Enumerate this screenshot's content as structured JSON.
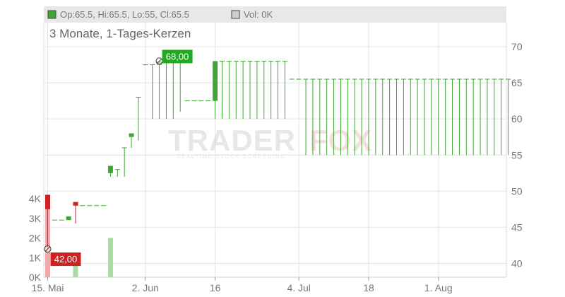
{
  "header": {
    "ohlc_text": "Op:65.5, Hi:65.5, Lo:55, Cl:65.5",
    "vol_text": "Vol: 0K"
  },
  "chart_data": {
    "type": "candlestick",
    "title": "3 Monate, 1-Tages-Kerzen",
    "price_axis": {
      "range": [
        38,
        75
      ],
      "ticks": [
        40,
        45,
        50,
        55,
        60,
        65,
        70
      ]
    },
    "volume_axis": {
      "range": [
        0,
        4000
      ],
      "ticks": [
        "0K",
        "1K",
        "2K",
        "3K",
        "4K"
      ]
    },
    "x_axis": {
      "ticks": [
        {
          "label": "15. Mai",
          "index": 0
        },
        {
          "label": "2. Jun",
          "index": 14
        },
        {
          "label": "16",
          "index": 24
        },
        {
          "label": "4. Jul",
          "index": 36
        },
        {
          "label": "18",
          "index": 46
        },
        {
          "label": "1. Aug",
          "index": 56
        }
      ]
    },
    "annotations": [
      {
        "label": "68,00",
        "index": 16,
        "price": 68,
        "color": "#22aa22"
      },
      {
        "label": "42,00",
        "index": 0,
        "price": 42,
        "color": "#cc2222"
      }
    ],
    "candles": [
      {
        "i": 0,
        "o": 49.5,
        "h": 49.5,
        "l": 42,
        "c": 47.5
      },
      {
        "i": 1,
        "o": 46,
        "h": 46,
        "l": 46,
        "c": 46
      },
      {
        "i": 2,
        "o": 46,
        "h": 46,
        "l": 46,
        "c": 46
      },
      {
        "i": 3,
        "o": 46,
        "h": 46.5,
        "l": 46,
        "c": 46.5
      },
      {
        "i": 4,
        "o": 48.5,
        "h": 48.5,
        "l": 45.5,
        "c": 48
      },
      {
        "i": 5,
        "o": 48,
        "h": 48,
        "l": 48,
        "c": 48
      },
      {
        "i": 6,
        "o": 48,
        "h": 48,
        "l": 48,
        "c": 48
      },
      {
        "i": 7,
        "o": 48,
        "h": 48,
        "l": 48,
        "c": 48
      },
      {
        "i": 8,
        "o": 48,
        "h": 48,
        "l": 48,
        "c": 48
      },
      {
        "i": 9,
        "o": 52.5,
        "h": 53.5,
        "l": 52,
        "c": 53.5
      },
      {
        "i": 10,
        "o": 53,
        "h": 53,
        "l": 52,
        "c": 53
      },
      {
        "i": 11,
        "o": 56,
        "h": 56,
        "l": 52,
        "c": 56
      },
      {
        "i": 12,
        "o": 57.5,
        "h": 58,
        "l": 56,
        "c": 58
      },
      {
        "i": 13,
        "o": 63,
        "h": 63,
        "l": 57,
        "c": 63
      },
      {
        "i": 14,
        "o": 67.5,
        "h": 67.5,
        "l": 67.5,
        "c": 67.5
      },
      {
        "i": 15,
        "o": 67.5,
        "h": 67.5,
        "l": 60,
        "c": 67.5
      },
      {
        "i": 16,
        "o": 67.5,
        "h": 68,
        "l": 60,
        "c": 68
      },
      {
        "i": 17,
        "o": 68,
        "h": 68,
        "l": 60,
        "c": 68
      },
      {
        "i": 18,
        "o": 68,
        "h": 68,
        "l": 60,
        "c": 68
      },
      {
        "i": 19,
        "o": 68,
        "h": 68,
        "l": 61,
        "c": 68
      },
      {
        "i": 20,
        "o": 62.5,
        "h": 62.5,
        "l": 62.5,
        "c": 62.5
      },
      {
        "i": 21,
        "o": 62.5,
        "h": 62.5,
        "l": 62.5,
        "c": 62.5
      },
      {
        "i": 22,
        "o": 62.5,
        "h": 62.5,
        "l": 62.5,
        "c": 62.5
      },
      {
        "i": 23,
        "o": 62.5,
        "h": 62.5,
        "l": 62.5,
        "c": 62.5
      },
      {
        "i": 24,
        "o": 62.5,
        "h": 68,
        "l": 60,
        "c": 68
      },
      {
        "i": 25,
        "o": 68,
        "h": 68,
        "l": 60,
        "c": 68
      },
      {
        "i": 26,
        "o": 68,
        "h": 68,
        "l": 60,
        "c": 68
      },
      {
        "i": 27,
        "o": 68,
        "h": 68,
        "l": 60,
        "c": 68
      },
      {
        "i": 28,
        "o": 68,
        "h": 68,
        "l": 60,
        "c": 68
      },
      {
        "i": 29,
        "o": 68,
        "h": 68,
        "l": 60,
        "c": 68
      },
      {
        "i": 30,
        "o": 68,
        "h": 68,
        "l": 60,
        "c": 68
      },
      {
        "i": 31,
        "o": 68,
        "h": 68,
        "l": 60,
        "c": 68
      },
      {
        "i": 32,
        "o": 68,
        "h": 68,
        "l": 60,
        "c": 68
      },
      {
        "i": 33,
        "o": 68,
        "h": 68,
        "l": 60,
        "c": 68
      },
      {
        "i": 34,
        "o": 68,
        "h": 68,
        "l": 60,
        "c": 68
      },
      {
        "i": 35,
        "o": 65.5,
        "h": 65.5,
        "l": 65.5,
        "c": 65.5
      },
      {
        "i": 36,
        "o": 65.5,
        "h": 65.5,
        "l": 65.5,
        "c": 65.5
      },
      {
        "i": 37,
        "o": 65.5,
        "h": 65.5,
        "l": 55,
        "c": 65.5
      },
      {
        "i": 38,
        "o": 65.5,
        "h": 65.5,
        "l": 55,
        "c": 65.5
      },
      {
        "i": 39,
        "o": 65.5,
        "h": 65.5,
        "l": 55,
        "c": 65.5
      },
      {
        "i": 40,
        "o": 65.5,
        "h": 65.5,
        "l": 55,
        "c": 65.5
      },
      {
        "i": 41,
        "o": 65.5,
        "h": 65.5,
        "l": 55,
        "c": 65.5
      },
      {
        "i": 42,
        "o": 65.5,
        "h": 65.5,
        "l": 55,
        "c": 65.5
      },
      {
        "i": 43,
        "o": 65.5,
        "h": 65.5,
        "l": 55,
        "c": 65.5
      },
      {
        "i": 44,
        "o": 65.5,
        "h": 65.5,
        "l": 55,
        "c": 65.5
      },
      {
        "i": 45,
        "o": 65.5,
        "h": 65.5,
        "l": 55,
        "c": 65.5
      },
      {
        "i": 46,
        "o": 65.5,
        "h": 65.5,
        "l": 55,
        "c": 65.5
      },
      {
        "i": 47,
        "o": 65.5,
        "h": 65.5,
        "l": 55,
        "c": 65.5
      },
      {
        "i": 48,
        "o": 65.5,
        "h": 65.5,
        "l": 55,
        "c": 65.5
      },
      {
        "i": 49,
        "o": 65.5,
        "h": 65.5,
        "l": 55,
        "c": 65.5
      },
      {
        "i": 50,
        "o": 65.5,
        "h": 65.5,
        "l": 55,
        "c": 65.5
      },
      {
        "i": 51,
        "o": 65.5,
        "h": 65.5,
        "l": 55,
        "c": 65.5
      },
      {
        "i": 52,
        "o": 65.5,
        "h": 65.5,
        "l": 55,
        "c": 65.5
      },
      {
        "i": 53,
        "o": 65.5,
        "h": 65.5,
        "l": 55,
        "c": 65.5
      },
      {
        "i": 54,
        "o": 65.5,
        "h": 65.5,
        "l": 55,
        "c": 65.5
      },
      {
        "i": 55,
        "o": 65.5,
        "h": 65.5,
        "l": 55,
        "c": 65.5
      },
      {
        "i": 56,
        "o": 65.5,
        "h": 65.5,
        "l": 55,
        "c": 65.5
      },
      {
        "i": 57,
        "o": 65.5,
        "h": 65.5,
        "l": 55,
        "c": 65.5
      },
      {
        "i": 58,
        "o": 65.5,
        "h": 65.5,
        "l": 55,
        "c": 65.5
      },
      {
        "i": 59,
        "o": 65.5,
        "h": 65.5,
        "l": 55,
        "c": 65.5
      },
      {
        "i": 60,
        "o": 65.5,
        "h": 65.5,
        "l": 55,
        "c": 65.5
      },
      {
        "i": 61,
        "o": 65.5,
        "h": 65.5,
        "l": 55,
        "c": 65.5
      },
      {
        "i": 62,
        "o": 65.5,
        "h": 65.5,
        "l": 55,
        "c": 65.5
      },
      {
        "i": 63,
        "o": 65.5,
        "h": 65.5,
        "l": 55,
        "c": 65.5
      },
      {
        "i": 64,
        "o": 65.5,
        "h": 65.5,
        "l": 55,
        "c": 65.5
      },
      {
        "i": 65,
        "o": 65.5,
        "h": 65.5,
        "l": 55,
        "c": 65.5
      },
      {
        "i": 66,
        "o": 65.5,
        "h": 65.5,
        "l": 55,
        "c": 65.5
      }
    ],
    "volume": [
      {
        "i": 0,
        "v": 4000,
        "dir": "down"
      },
      {
        "i": 4,
        "v": 600,
        "dir": "up"
      },
      {
        "i": 9,
        "v": 2000,
        "dir": "up"
      }
    ],
    "colors": {
      "up": "#3fa535",
      "down": "#cc2222",
      "volume_up": "#a8dca0",
      "volume_down": "#f0a8ac",
      "grid": "#e4e4e4",
      "header_bg": "#e8e8e8"
    }
  },
  "watermark": {
    "brand_a": "TRADER",
    "brand_b": "FOX",
    "tagline": "REALTIME STOCK SCREENING"
  }
}
